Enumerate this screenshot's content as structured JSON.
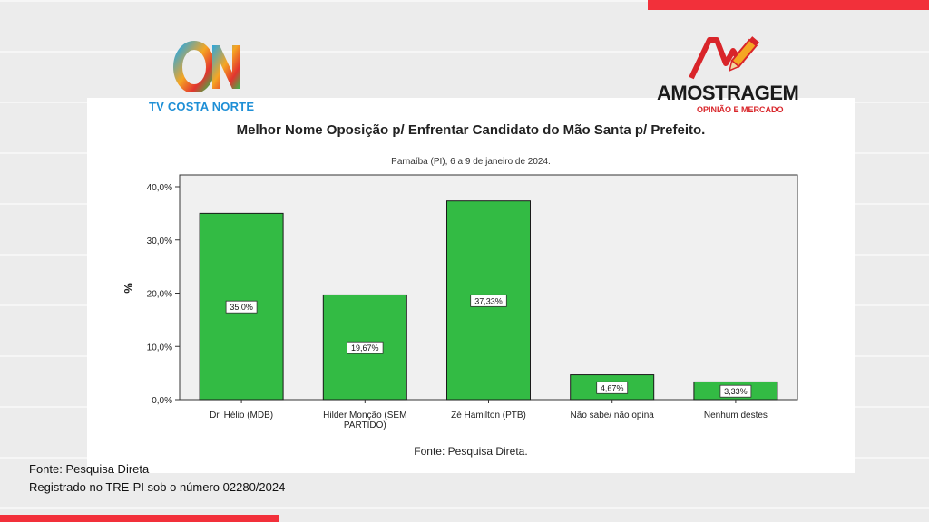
{
  "colors": {
    "accent_red": "#f2303a",
    "bar_fill": "#33bb44",
    "bar_stroke": "#1a1a1a",
    "plot_bg": "#f0f0f0"
  },
  "logos": {
    "tv": {
      "name": "TV COSTA NORTE",
      "mark": "ON"
    },
    "amostragem": {
      "name": "AMOSTRAGEM",
      "tagline": "OPINIÃO E MERCADO"
    }
  },
  "chart_data": {
    "type": "bar",
    "title": "Melhor Nome Oposição p/ Enfrentar Candidato do Mão Santa p/ Prefeito.",
    "subtitle": "Parnaíba (PI), 6 a 9 de janeiro de 2024.",
    "ylabel": "%",
    "xlabel": "",
    "ylim": [
      0,
      40
    ],
    "yticks": [
      0,
      10,
      20,
      30,
      40
    ],
    "ytick_labels": [
      "0,0%",
      "10,0%",
      "20,0%",
      "30,0%",
      "40,0%"
    ],
    "categories": [
      [
        "Dr. Hélio (MDB)"
      ],
      [
        "Hilder Monção (SEM",
        "PARTIDO)"
      ],
      [
        "Zé Hamilton (PTB)"
      ],
      [
        "Não sabe/ não opina"
      ],
      [
        "Nenhum destes"
      ]
    ],
    "values": [
      35.0,
      19.67,
      37.33,
      4.67,
      3.33
    ],
    "value_labels": [
      "35,0%",
      "19,67%",
      "37,33%",
      "4,67%",
      "3,33%"
    ],
    "source": "Fonte: Pesquisa Direta.",
    "grid": false,
    "legend": "none"
  },
  "caption": {
    "source": "Fonte: Pesquisa Direta",
    "registration": "Registrado no TRE-PI sob o número 02280/2024"
  }
}
